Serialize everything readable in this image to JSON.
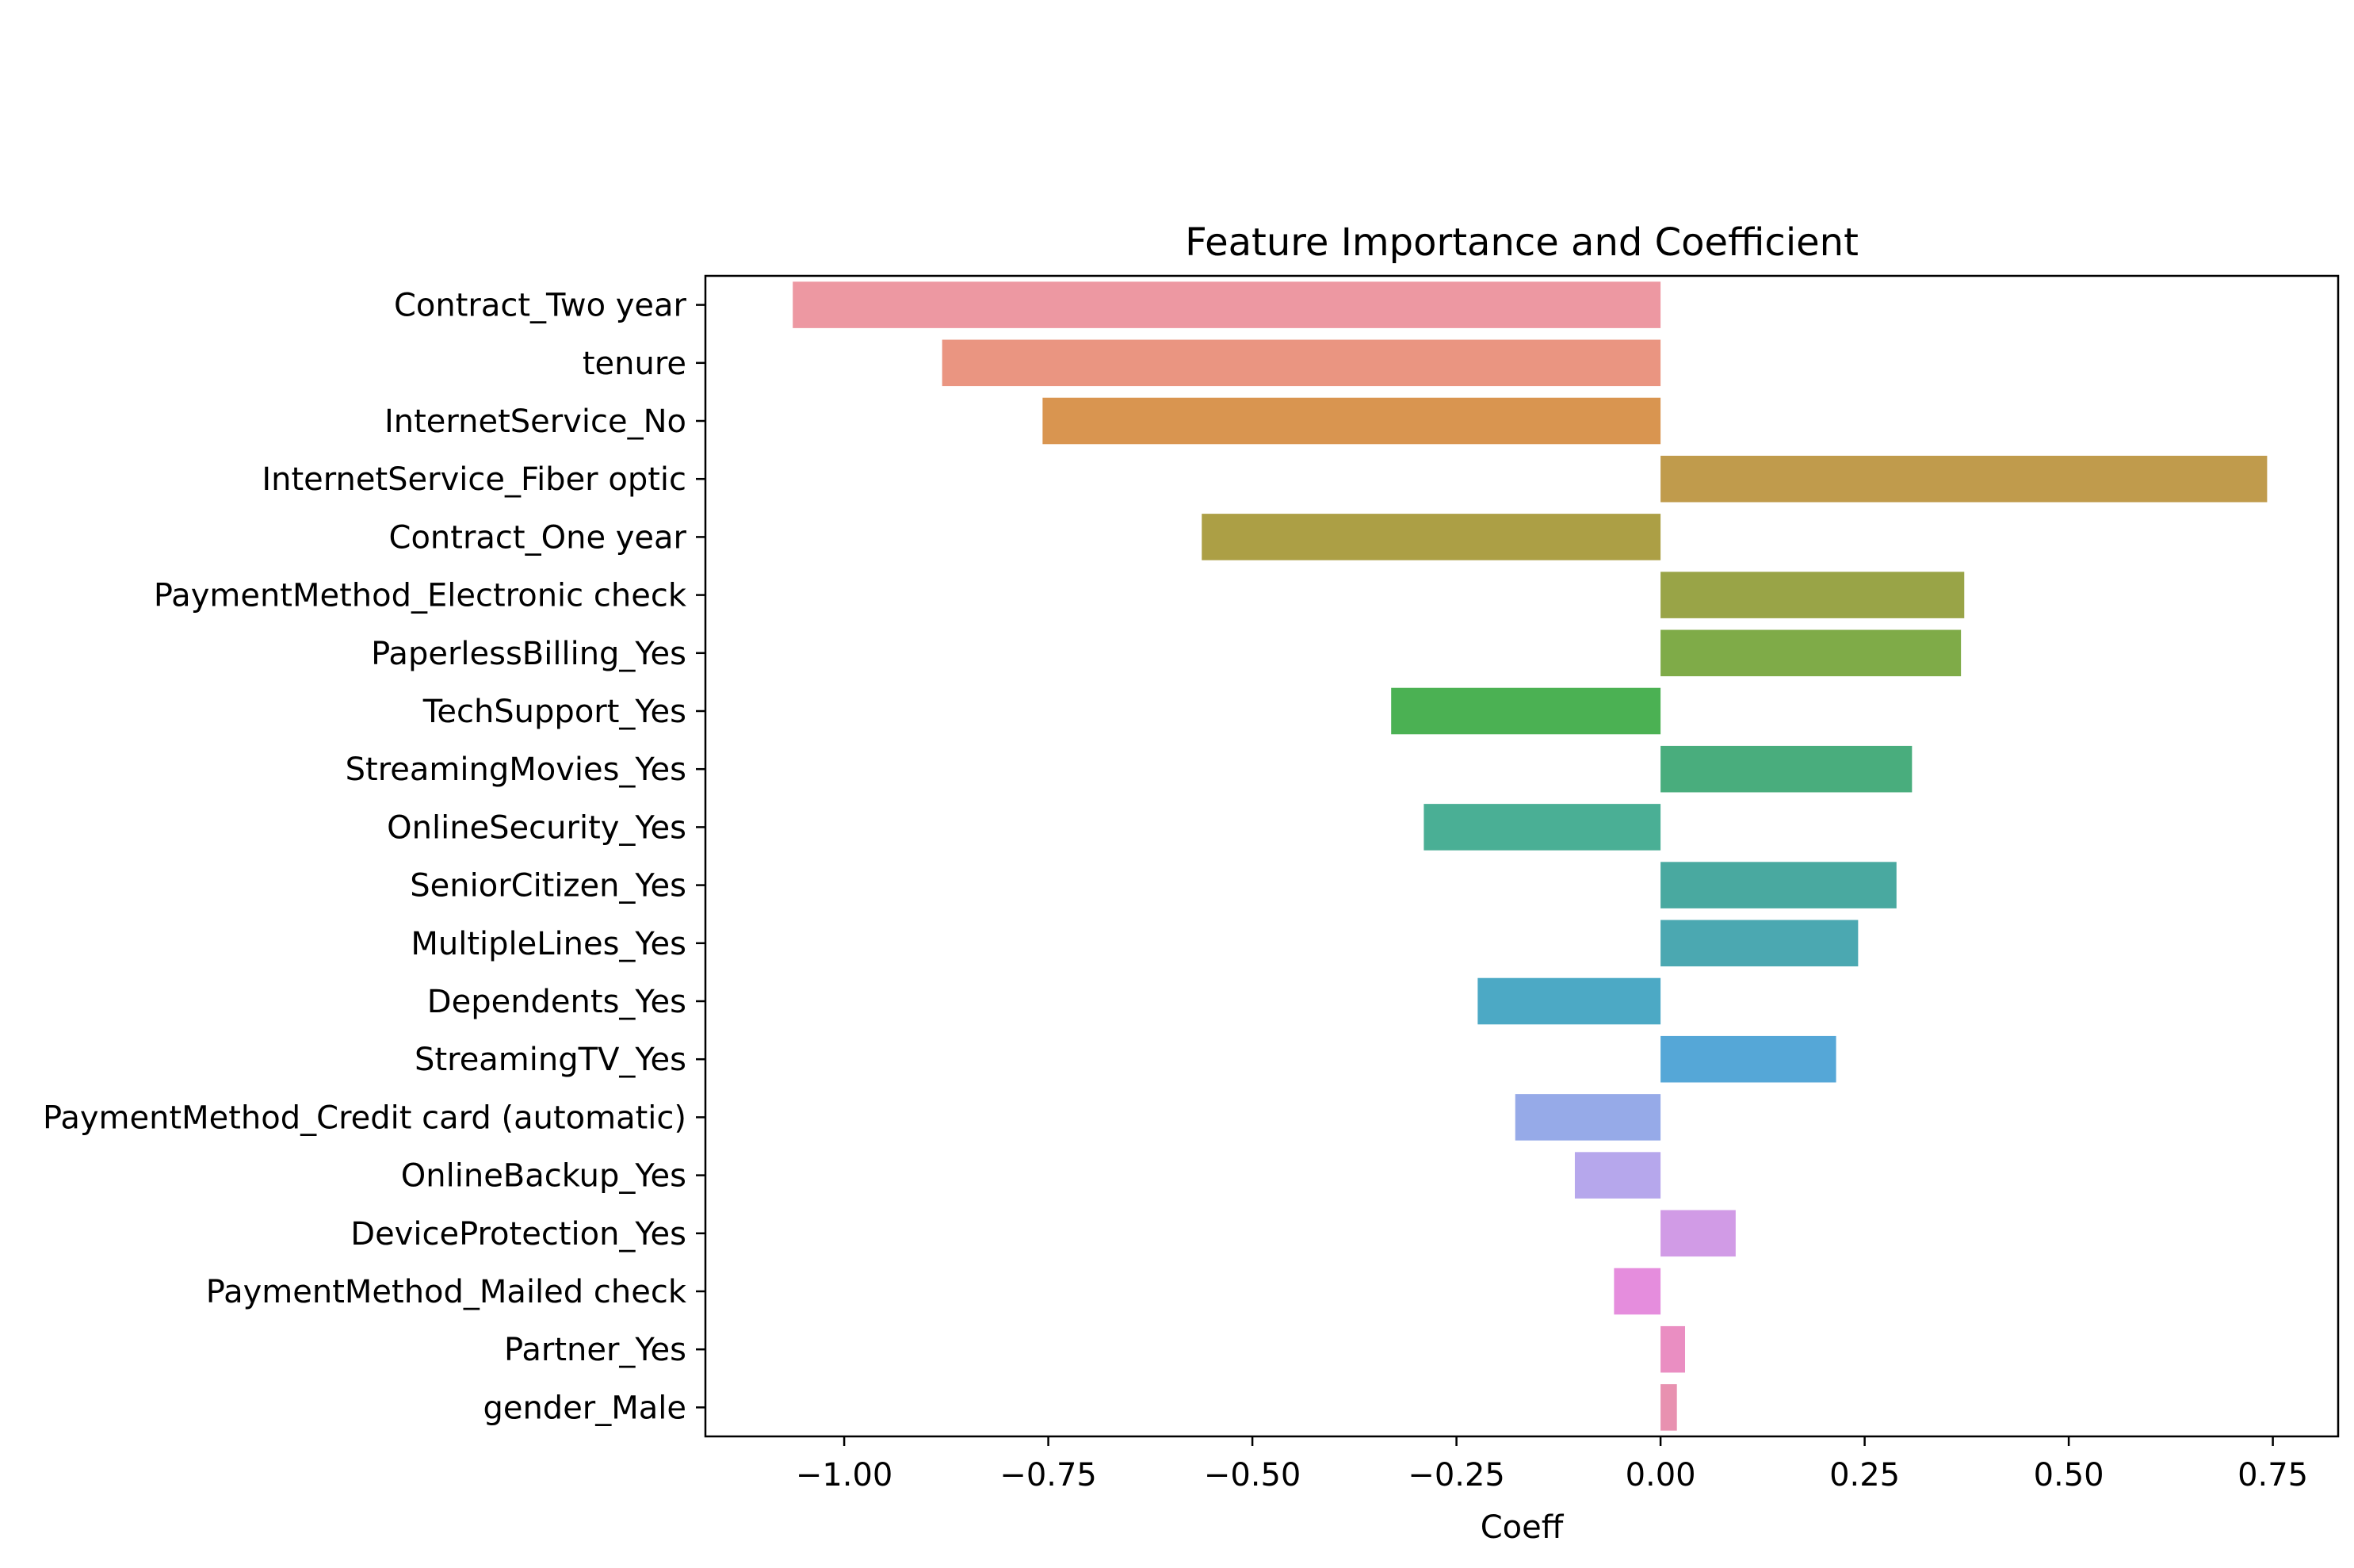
{
  "chart_data": {
    "type": "bar",
    "orientation": "horizontal",
    "title": "Feature Importance and Coefficient",
    "xlabel": "Coeff",
    "ylabel": "",
    "xlim": [
      -1.17,
      0.83
    ],
    "xticks": [
      -1.0,
      -0.75,
      -0.5,
      -0.25,
      0.0,
      0.25,
      0.5,
      0.75
    ],
    "xtick_labels": [
      "−1.00",
      "−0.75",
      "−0.50",
      "−0.25",
      "0.00",
      "0.25",
      "0.50",
      "0.75"
    ],
    "grid": false,
    "legend": "none",
    "categories": [
      "Contract_Two year",
      "tenure",
      "InternetService_No",
      "InternetService_Fiber optic",
      "Contract_One year",
      "PaymentMethod_Electronic check",
      "PaperlessBilling_Yes",
      "TechSupport_Yes",
      "StreamingMovies_Yes",
      "OnlineSecurity_Yes",
      "SeniorCitizen_Yes",
      "MultipleLines_Yes",
      "Dependents_Yes",
      "StreamingTV_Yes",
      "PaymentMethod_Credit card (automatic)",
      "OnlineBackup_Yes",
      "DeviceProtection_Yes",
      "PaymentMethod_Mailed check",
      "Partner_Yes",
      "gender_Male"
    ],
    "values": [
      -1.063,
      -0.88,
      -0.757,
      0.743,
      -0.562,
      0.372,
      0.368,
      -0.33,
      0.308,
      -0.29,
      0.289,
      0.242,
      -0.224,
      0.215,
      -0.178,
      -0.105,
      0.092,
      -0.057,
      0.03,
      0.02
    ],
    "colors": [
      "#ed98a2",
      "#ea9581",
      "#d99550",
      "#c09b4c",
      "#ac9f45",
      "#99a447",
      "#7fab48",
      "#4bb153",
      "#49ad7d",
      "#4aaf95",
      "#49a9a0",
      "#4ba8b1",
      "#4ca9c5",
      "#55a7d7",
      "#96aae8",
      "#b6a7ec",
      "#d19be6",
      "#e58ddd",
      "#ea8ec2",
      "#e891b0"
    ]
  }
}
